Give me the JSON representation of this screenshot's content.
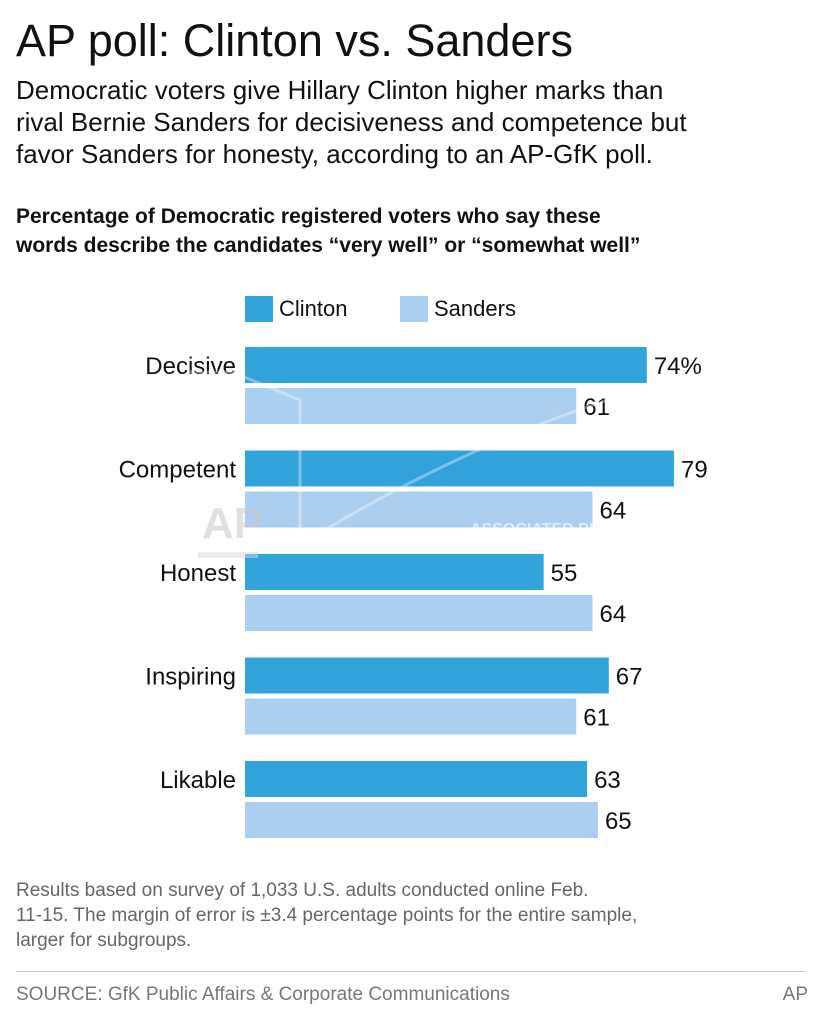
{
  "header": {
    "title": "AP poll: Clinton vs. Sanders",
    "subtitle_lines": [
      "Democratic voters give Hillary Clinton higher marks than",
      "rival Bernie Sanders for decisiveness and competence but",
      "favor Sanders for honesty, according to an AP-GfK poll."
    ],
    "chart_heading_lines": [
      "Percentage of Democratic registered voters who say these",
      "words describe the candidates “very well” or “somewhat well”"
    ]
  },
  "colors": {
    "clinton": "#33a3dc",
    "sanders": "#abcff0"
  },
  "chart_data": {
    "type": "bar",
    "orientation": "horizontal",
    "categories": [
      "Decisive",
      "Competent",
      "Honest",
      "Inspiring",
      "Likable"
    ],
    "series": [
      {
        "name": "Clinton",
        "values": [
          74,
          79,
          55,
          67,
          63
        ],
        "color": "#33a3dc"
      },
      {
        "name": "Sanders",
        "values": [
          61,
          64,
          64,
          61,
          65
        ],
        "color": "#abcff0"
      }
    ],
    "value_labels": [
      [
        "74%",
        "79",
        "55",
        "67",
        "63"
      ],
      [
        "61",
        "64",
        "64",
        "61",
        "65"
      ]
    ],
    "legend": "top",
    "grid": false
  },
  "watermark": {
    "logo_text": "AP",
    "text": "ASSOCIATED PRESS"
  },
  "footer": {
    "note_lines": [
      "Results based on survey of 1,033 U.S. adults conducted online Feb.",
      "11-15. The margin of error is ±3.4 percentage points for the entire sample,",
      "larger for subgroups."
    ],
    "source": "SOURCE: GfK Public Affairs & Corporate Communications",
    "credit": "AP"
  }
}
